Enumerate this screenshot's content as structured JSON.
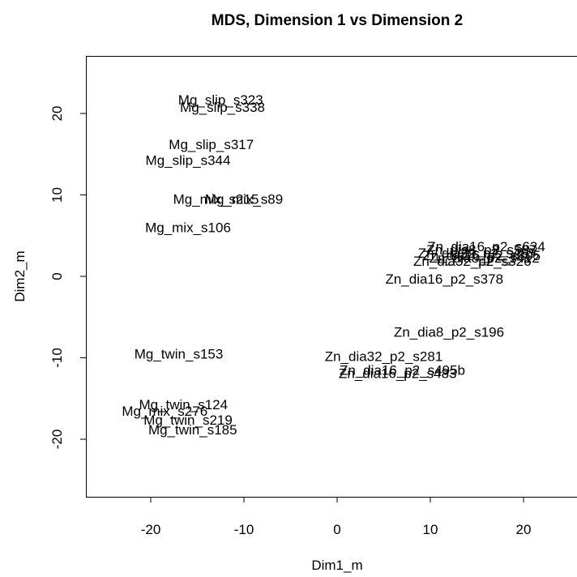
{
  "chart_data": {
    "type": "scatter",
    "title": "MDS, Dimension 1 vs Dimension 2",
    "xlabel": "Dim1_m",
    "ylabel": "Dim2_m",
    "xlim": [
      -27,
      26
    ],
    "ylim": [
      -27,
      27
    ],
    "xticks": [
      -20,
      -10,
      0,
      10,
      20
    ],
    "yticks": [
      -20,
      -10,
      0,
      10,
      20
    ],
    "grid": false,
    "marker": "text",
    "points": [
      {
        "label": "Mg_slip_s323",
        "x": -12.5,
        "y": 21.7
      },
      {
        "label": "Mg_slip_s338",
        "x": -12.3,
        "y": 20.8
      },
      {
        "label": "Mg_slip_s317",
        "x": -13.5,
        "y": 16.2
      },
      {
        "label": "Mg_slip_s344",
        "x": -16.0,
        "y": 14.3
      },
      {
        "label": "Mg_mix_s215",
        "x": -13.0,
        "y": 9.5
      },
      {
        "label": "Mg_mix_s89",
        "x": -10.0,
        "y": 9.5
      },
      {
        "label": "Mg_mix_s106",
        "x": -16.0,
        "y": 6.0
      },
      {
        "label": "Zn_dia16_p2_s634",
        "x": 16.0,
        "y": 3.7
      },
      {
        "label": "Zn_dia8_p2_s587",
        "x": 15.5,
        "y": 3.3
      },
      {
        "label": "Zn_dia32_p2_s455",
        "x": 15.0,
        "y": 2.9
      },
      {
        "label": "Zn_dia16_p2_s305",
        "x": 15.5,
        "y": 2.6
      },
      {
        "label": "Zn_dia8_p2_s412",
        "x": 15.8,
        "y": 2.3
      },
      {
        "label": "Zn_dia32_p2_s326",
        "x": 14.5,
        "y": 1.9
      },
      {
        "label": "Zn_dia16_p2_s378",
        "x": 11.5,
        "y": -0.3
      },
      {
        "label": "Zn_dia8_p2_s196",
        "x": 12.0,
        "y": -6.8
      },
      {
        "label": "Zn_dia32_p2_s281",
        "x": 5.0,
        "y": -9.8
      },
      {
        "label": "Zn_dia16_p2_s495b",
        "x": 7.0,
        "y": -11.5
      },
      {
        "label": "Zn_dia16_p2_s483",
        "x": 6.5,
        "y": -11.9
      },
      {
        "label": "Mg_twin_s153",
        "x": -17.0,
        "y": -9.5
      },
      {
        "label": "Mg_twin_s124",
        "x": -16.5,
        "y": -15.7
      },
      {
        "label": "Mg_mix_s276",
        "x": -18.5,
        "y": -16.5
      },
      {
        "label": "Mg_twin_s219",
        "x": -16.0,
        "y": -17.6
      },
      {
        "label": "Mg_twin_s185",
        "x": -15.5,
        "y": -18.8
      }
    ]
  }
}
